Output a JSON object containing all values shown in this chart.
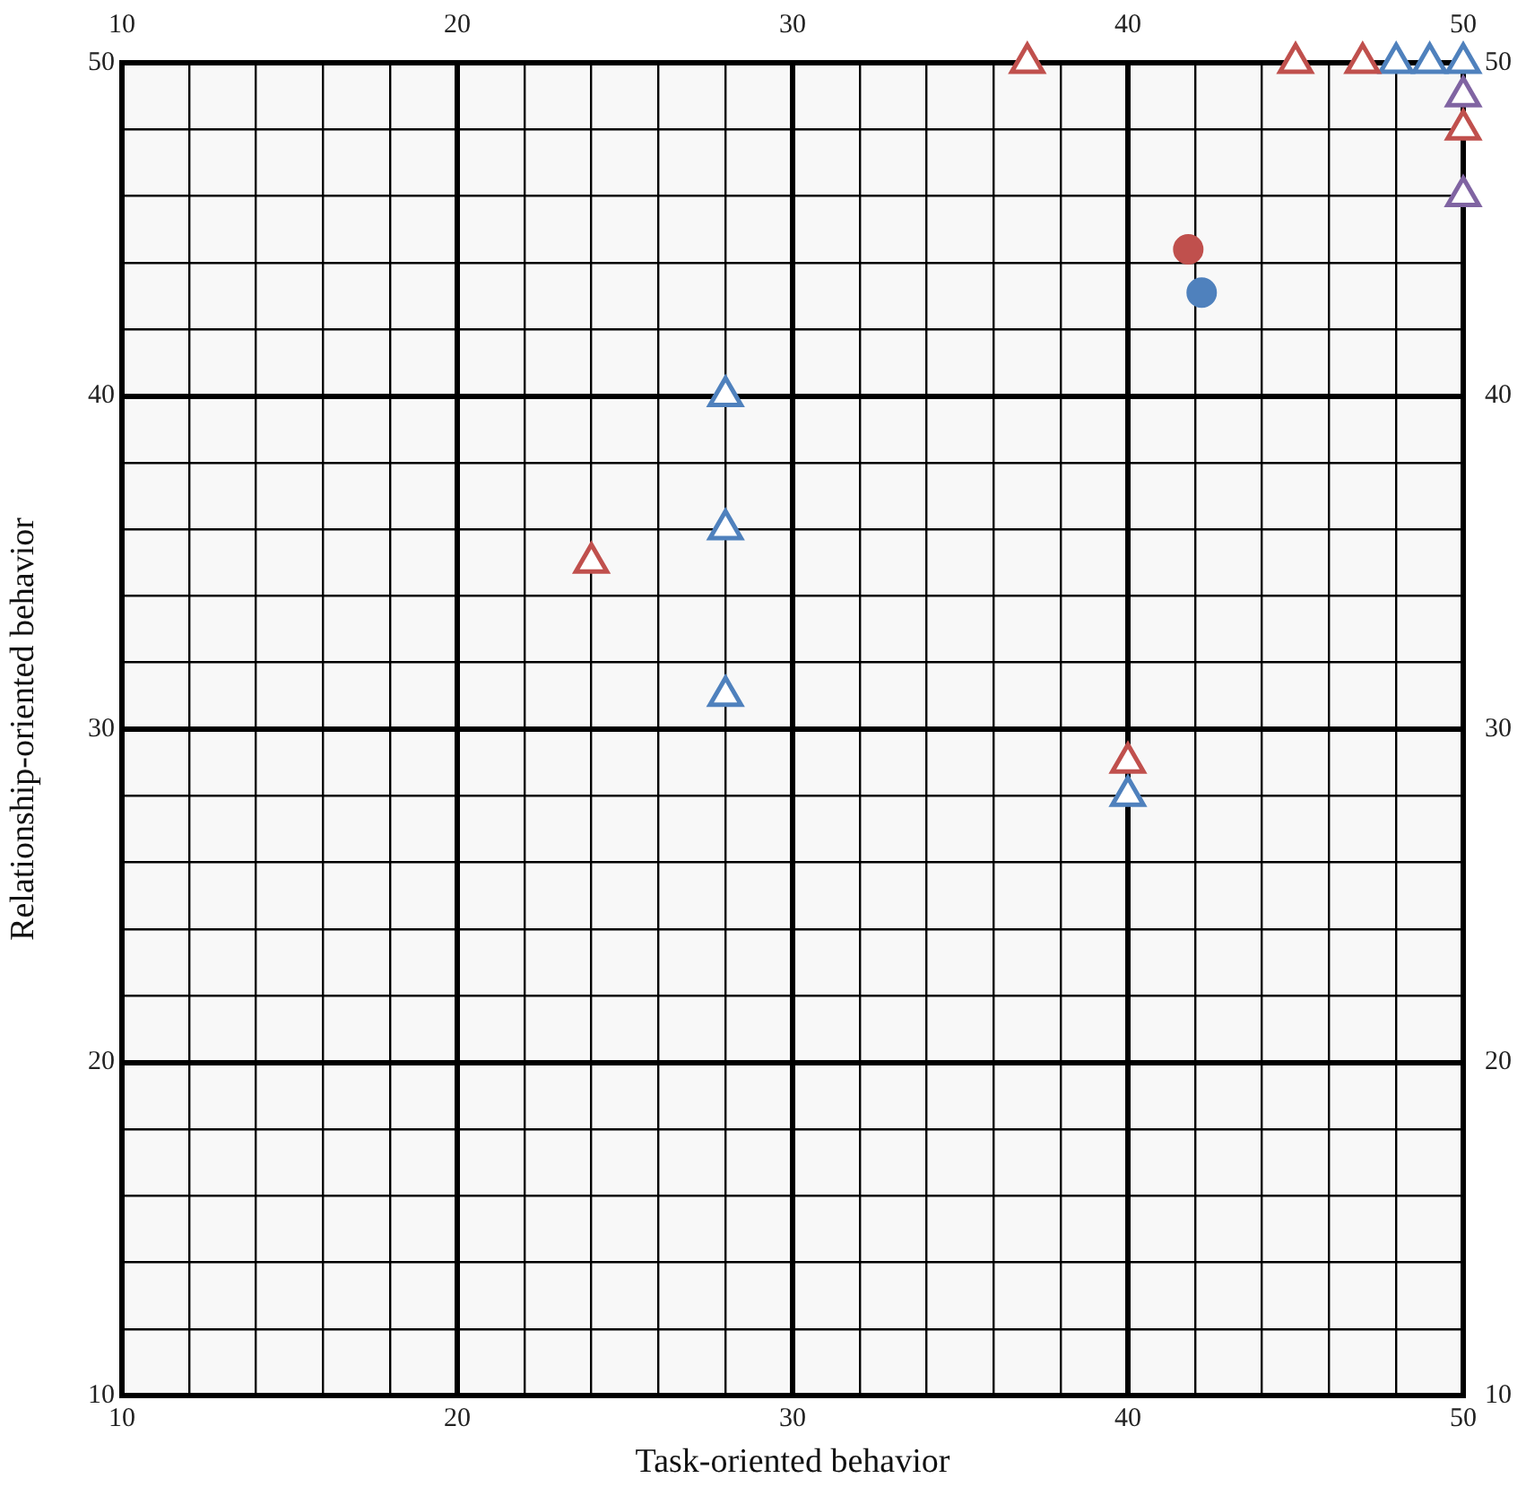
{
  "chart_data": {
    "type": "scatter",
    "xlabel": "Task-oriented behavior",
    "ylabel": "Relationship-oriented behavior",
    "xlim": [
      10,
      50
    ],
    "ylim": [
      10,
      50
    ],
    "x2lim": [
      10,
      50
    ],
    "y2lim": [
      10,
      50
    ],
    "xticks": [
      10,
      {
        "value": 12,
        "label": null
      },
      {
        "value": 14,
        "label": null
      },
      {
        "value": 16,
        "label": null
      },
      {
        "value": 18,
        "label": null
      },
      20,
      {
        "value": 22,
        "label": null
      },
      {
        "value": 24,
        "label": null
      },
      {
        "value": 26,
        "label": null
      },
      {
        "value": 28,
        "label": null
      },
      30,
      {
        "value": 32,
        "label": null
      },
      {
        "value": 34,
        "label": null
      },
      {
        "value": 36,
        "label": null
      },
      {
        "value": 38,
        "label": null
      },
      40,
      {
        "value": 42,
        "label": null
      },
      {
        "value": 44,
        "label": null
      },
      {
        "value": 46,
        "label": null
      },
      {
        "value": 48,
        "label": null
      },
      50
    ],
    "yticks": [
      10,
      {
        "value": 12,
        "label": null
      },
      {
        "value": 14,
        "label": null
      },
      {
        "value": 16,
        "label": null
      },
      {
        "value": 18,
        "label": null
      },
      20,
      {
        "value": 22,
        "label": null
      },
      {
        "value": 24,
        "label": null
      },
      {
        "value": 26,
        "label": null
      },
      {
        "value": 28,
        "label": null
      },
      30,
      {
        "value": 32,
        "label": null
      },
      {
        "value": 34,
        "label": null
      },
      {
        "value": 36,
        "label": null
      },
      {
        "value": 38,
        "label": null
      },
      40,
      {
        "value": 42,
        "label": null
      },
      {
        "value": 44,
        "label": null
      },
      {
        "value": 46,
        "label": null
      },
      {
        "value": 48,
        "label": null
      },
      50
    ],
    "x2ticks": [
      10,
      20,
      30,
      40,
      50
    ],
    "y2ticks": [
      10,
      20,
      30,
      40,
      50
    ],
    "grid": true,
    "series": [
      {
        "color": "#c0504d",
        "marker": "triangle",
        "x": [
          37,
          45,
          47,
          50,
          24,
          40
        ],
        "values": [
          50,
          50,
          50,
          48,
          35,
          29
        ]
      },
      {
        "color": "#4f81bd",
        "marker": "triangle",
        "x": [
          48,
          49,
          50,
          28,
          28,
          28,
          40
        ],
        "values": [
          50,
          50,
          50,
          40,
          36,
          31,
          28
        ]
      },
      {
        "color": "#8064a2",
        "marker": "triangle",
        "x": [
          50,
          50
        ],
        "values": [
          49,
          46
        ]
      },
      {
        "color": "#c0504d",
        "marker": "circle",
        "x": [
          41.8
        ],
        "values": [
          44.4
        ]
      },
      {
        "color": "#4f81bd",
        "marker": "circle",
        "x": [
          42.2
        ],
        "values": [
          43.1
        ]
      }
    ]
  }
}
